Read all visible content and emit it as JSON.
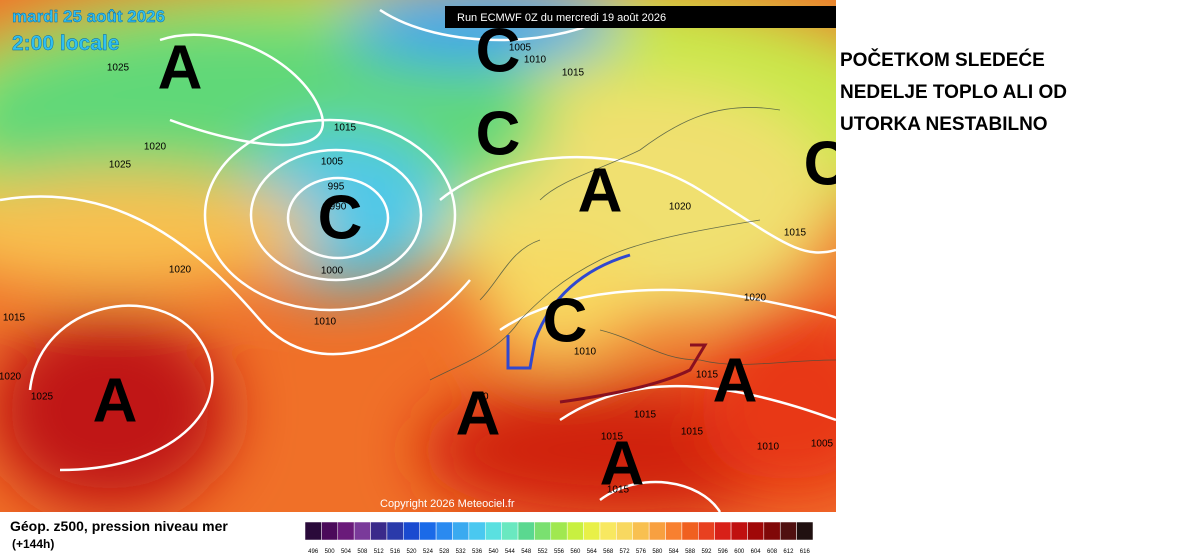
{
  "header": {
    "date": "mardi 25 août 2026",
    "time": "2:00 locale",
    "run": "Run ECMWF 0Z du mercredi 19 août 2026"
  },
  "side_text": [
    "POČETKOM SLEDEĆE",
    "NEDELJE TOPLO ALI OD",
    "UTORKA NESTABILNO"
  ],
  "pressure_centers": [
    "A",
    "C",
    "C",
    "C",
    "A",
    "C",
    "C",
    "A",
    "A",
    "A",
    "A"
  ],
  "isobar_labels": [
    1025,
    1020,
    1025,
    1015,
    1005,
    995,
    990,
    1000,
    1020,
    1010,
    1015,
    1020,
    1025,
    1005,
    1010,
    1015,
    1020,
    1015,
    1020,
    1010,
    1015,
    1015,
    1015,
    1015,
    1010,
    1005,
    1015,
    20
  ],
  "copyright": "Copyright 2026 Meteociel.fr",
  "legend": {
    "title": "Géop. z500, pression niveau mer",
    "lead": "(+144h)",
    "scale": [
      496,
      500,
      504,
      508,
      512,
      516,
      520,
      524,
      528,
      532,
      536,
      540,
      544,
      548,
      552,
      556,
      560,
      564,
      568,
      572,
      576,
      580,
      584,
      588,
      592,
      596,
      600,
      604,
      608,
      612,
      616
    ],
    "colors": [
      "#2a0a3a",
      "#4b0a5a",
      "#6a1a7a",
      "#7a3a9a",
      "#3a2a8a",
      "#2a3aaa",
      "#1a4ad0",
      "#1a6ae8",
      "#2a8af0",
      "#3aaaf0",
      "#4ac8f0",
      "#5ae0e0",
      "#6ae8c0",
      "#5ad890",
      "#7ae070",
      "#a0e850",
      "#c8f040",
      "#e8f048",
      "#f8e860",
      "#f8d860",
      "#f8c050",
      "#f8a040",
      "#f88030",
      "#f06020",
      "#e84020",
      "#d82018",
      "#c01010",
      "#a00808",
      "#800808",
      "#501010",
      "#201010"
    ]
  }
}
